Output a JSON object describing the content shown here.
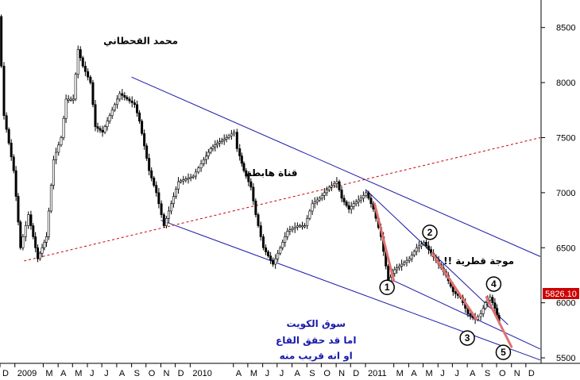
{
  "chart_data": {
    "type": "candlestick",
    "title": "",
    "xlabel": "",
    "ylabel": "",
    "ylim": [
      5450,
      8750
    ],
    "xlim": [
      "2008-12-01",
      "2011-12-31"
    ],
    "grid": false,
    "axis_side": "right",
    "price_label": "5826.10",
    "yticks": [
      8500,
      8000,
      7500,
      7000,
      6500,
      6000,
      5500
    ],
    "xticks": [
      {
        "label": "D",
        "date": "2008-12-01"
      },
      {
        "label": "2009",
        "date": "2009-01-01"
      },
      {
        "label": "M",
        "date": "2009-03-01"
      },
      {
        "label": "A",
        "date": "2009-04-01"
      },
      {
        "label": "M",
        "date": "2009-05-01"
      },
      {
        "label": "J",
        "date": "2009-06-01"
      },
      {
        "label": "J",
        "date": "2009-07-01"
      },
      {
        "label": "A",
        "date": "2009-08-01"
      },
      {
        "label": "S",
        "date": "2009-09-01"
      },
      {
        "label": "O",
        "date": "2009-10-01"
      },
      {
        "label": "N",
        "date": "2009-11-01"
      },
      {
        "label": "D",
        "date": "2009-12-01"
      },
      {
        "label": "2010",
        "date": "2010-01-01"
      },
      {
        "label": "A",
        "date": "2010-04-01"
      },
      {
        "label": "M",
        "date": "2010-05-01"
      },
      {
        "label": "J",
        "date": "2010-06-01"
      },
      {
        "label": "J",
        "date": "2010-07-01"
      },
      {
        "label": "A",
        "date": "2010-08-01"
      },
      {
        "label": "S",
        "date": "2010-09-01"
      },
      {
        "label": "O",
        "date": "2010-10-01"
      },
      {
        "label": "N",
        "date": "2010-11-01"
      },
      {
        "label": "D",
        "date": "2010-12-01"
      },
      {
        "label": "2011",
        "date": "2011-01-01"
      },
      {
        "label": "M",
        "date": "2011-03-01"
      },
      {
        "label": "A",
        "date": "2011-04-01"
      },
      {
        "label": "M",
        "date": "2011-05-01"
      },
      {
        "label": "J",
        "date": "2011-06-01"
      },
      {
        "label": "J",
        "date": "2011-07-01"
      },
      {
        "label": "A",
        "date": "2011-08-01"
      },
      {
        "label": "S",
        "date": "2011-09-01"
      },
      {
        "label": "O",
        "date": "2011-10-01"
      },
      {
        "label": "N",
        "date": "2011-11-01"
      },
      {
        "label": "D",
        "date": "2011-12-01"
      }
    ],
    "path": [
      [
        "2008-12-01",
        8600
      ],
      [
        "2008-12-12",
        7700
      ],
      [
        "2009-01-01",
        7200
      ],
      [
        "2009-01-15",
        6500
      ],
      [
        "2009-02-01",
        6800
      ],
      [
        "2009-02-20",
        6400
      ],
      [
        "2009-03-10",
        6600
      ],
      [
        "2009-03-25",
        7300
      ],
      [
        "2009-04-10",
        7500
      ],
      [
        "2009-04-20",
        7850
      ],
      [
        "2009-05-05",
        7850
      ],
      [
        "2009-05-15",
        8300
      ],
      [
        "2009-05-25",
        8150
      ],
      [
        "2009-06-10",
        8000
      ],
      [
        "2009-06-20",
        7600
      ],
      [
        "2009-07-05",
        7550
      ],
      [
        "2009-07-20",
        7700
      ],
      [
        "2009-08-10",
        7900
      ],
      [
        "2009-08-25",
        7850
      ],
      [
        "2009-09-10",
        7800
      ],
      [
        "2009-09-20",
        7650
      ],
      [
        "2009-10-10",
        7200
      ],
      [
        "2009-10-25",
        7000
      ],
      [
        "2009-11-10",
        6700
      ],
      [
        "2009-11-25",
        6900
      ],
      [
        "2009-12-10",
        7100
      ],
      [
        "2010-01-10",
        7150
      ],
      [
        "2010-02-01",
        7300
      ],
      [
        "2010-02-15",
        7400
      ],
      [
        "2010-03-01",
        7450
      ],
      [
        "2010-03-20",
        7500
      ],
      [
        "2010-04-05",
        7550
      ],
      [
        "2010-04-12",
        7400
      ],
      [
        "2010-04-25",
        7200
      ],
      [
        "2010-05-10",
        7050
      ],
      [
        "2010-05-20",
        6800
      ],
      [
        "2010-06-05",
        6500
      ],
      [
        "2010-06-25",
        6350
      ],
      [
        "2010-07-10",
        6500
      ],
      [
        "2010-07-25",
        6650
      ],
      [
        "2010-08-15",
        6700
      ],
      [
        "2010-08-30",
        6700
      ],
      [
        "2010-09-15",
        6900
      ],
      [
        "2010-09-30",
        6950
      ],
      [
        "2010-10-20",
        7050
      ],
      [
        "2010-11-05",
        7100
      ],
      [
        "2010-11-15",
        6950
      ],
      [
        "2010-11-30",
        6850
      ],
      [
        "2010-12-10",
        6900
      ],
      [
        "2010-12-25",
        6950
      ],
      [
        "2011-01-05",
        7000
      ],
      [
        "2011-01-20",
        6850
      ],
      [
        "2011-02-05",
        6600
      ],
      [
        "2011-02-20",
        6200
      ],
      [
        "2011-03-05",
        6300
      ],
      [
        "2011-03-20",
        6350
      ],
      [
        "2011-04-05",
        6400
      ],
      [
        "2011-04-20",
        6500
      ],
      [
        "2011-05-05",
        6550
      ],
      [
        "2011-05-20",
        6450
      ],
      [
        "2011-06-05",
        6350
      ],
      [
        "2011-06-20",
        6250
      ],
      [
        "2011-07-05",
        6100
      ],
      [
        "2011-07-20",
        6050
      ],
      [
        "2011-08-05",
        5900
      ],
      [
        "2011-08-20",
        5850
      ],
      [
        "2011-09-01",
        5900
      ],
      [
        "2011-09-10",
        6000
      ],
      [
        "2011-09-20",
        6050
      ],
      [
        "2011-09-30",
        5950
      ],
      [
        "2011-10-08",
        5826
      ]
    ],
    "channel_lines": [
      {
        "from": [
          "2009-09-01",
          8050
        ],
        "to": [
          "2011-12-31",
          6420
        ]
      },
      {
        "from": [
          "2009-11-01",
          6750
        ],
        "to": [
          "2011-12-31",
          5480
        ]
      },
      {
        "from": [
          "2011-01-01",
          7030
        ],
        "to": [
          "2011-10-25",
          5800
        ]
      },
      {
        "from": [
          "2011-03-01",
          6200
        ],
        "to": [
          "2011-12-31",
          5580
        ]
      }
    ],
    "dotted_line": {
      "from": [
        "2009-01-20",
        6380
      ],
      "to": [
        "2011-12-31",
        7500
      ]
    },
    "wave_segments": [
      {
        "from": [
          "2011-01-20",
          6900
        ],
        "to": [
          "2011-03-01",
          6200
        ]
      },
      {
        "from": [
          "2011-05-20",
          6450
        ],
        "to": [
          "2011-08-20",
          5850
        ]
      },
      {
        "from": [
          "2011-09-10",
          6050
        ],
        "to": [
          "2011-11-01",
          5600
        ]
      }
    ],
    "wave_labels": [
      {
        "label": "1",
        "date": "2011-02-15",
        "value": 6140
      },
      {
        "label": "2",
        "date": "2011-05-15",
        "value": 6640
      },
      {
        "label": "3",
        "date": "2011-08-01",
        "value": 5680
      },
      {
        "label": "4",
        "date": "2011-09-25",
        "value": 6170
      },
      {
        "label": "5",
        "date": "2011-10-15",
        "value": 5550
      }
    ],
    "annotations": [
      {
        "text": "محمد القحطاني",
        "date": "2009-09-20",
        "value": 8350
      },
      {
        "text": "قناة هابطة",
        "date": "2010-06-20",
        "value": 7150
      },
      {
        "text": "موجة قطرية !!",
        "date": "2011-08-25",
        "value": 6350
      },
      {
        "text": "سوق الكويت",
        "date": "2010-09-20",
        "value": 5780
      },
      {
        "text": "اما قد حقق القاع",
        "date": "2010-09-20",
        "value": 5630
      },
      {
        "text": "او انه قريب منه",
        "date": "2010-09-20",
        "value": 5490
      }
    ]
  }
}
